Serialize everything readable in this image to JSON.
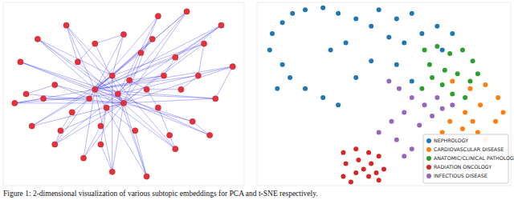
{
  "chart_data": [
    {
      "type": "network",
      "color": "#e8303a",
      "tick_labels": false,
      "xlim": [
        -1.05,
        1.05
      ],
      "ylim": [
        -1,
        1
      ],
      "x": [
        -0.25,
        0.0,
        -0.1,
        0.3,
        0.55,
        0.85,
        0.95,
        0.7,
        -0.9,
        -0.75,
        -0.5,
        -0.95,
        -0.8,
        -0.6,
        -0.35,
        -0.1,
        0.2,
        0.45,
        0.6,
        0.8,
        0.35,
        0.45,
        0.15,
        -0.4,
        -0.6,
        -0.45,
        -0.2,
        0.1,
        0.3,
        0.2,
        -0.3,
        -0.15,
        0.05,
        -0.05,
        0.5,
        -0.7,
        0.65,
        -0.25,
        0.0,
        0.4,
        -0.55,
        0.25,
        -0.85,
        0.75,
        -0.2
      ],
      "values": [
        0.05,
        -0.1,
        0.2,
        0.85,
        0.9,
        0.75,
        0.3,
        0.55,
        0.35,
        0.6,
        0.75,
        -0.1,
        -0.35,
        -0.55,
        -0.7,
        -0.85,
        -0.9,
        -0.6,
        -0.3,
        -0.05,
        0.2,
        0.4,
        0.45,
        0.35,
        0.1,
        -0.2,
        -0.35,
        -0.4,
        -0.15,
        0.05,
        -0.05,
        -0.15,
        0.15,
        0.0,
        0.05,
        -0.05,
        0.2,
        0.55,
        0.65,
        -0.45,
        -0.4,
        0.6,
        0.0,
        -0.45,
        -0.55
      ],
      "edges": [
        [
          0,
          3
        ],
        [
          0,
          4
        ],
        [
          0,
          5
        ],
        [
          0,
          6
        ],
        [
          0,
          7
        ],
        [
          0,
          8
        ],
        [
          0,
          9
        ],
        [
          0,
          10
        ],
        [
          0,
          11
        ],
        [
          0,
          12
        ],
        [
          0,
          13
        ],
        [
          0,
          14
        ],
        [
          0,
          15
        ],
        [
          0,
          16
        ],
        [
          0,
          17
        ],
        [
          0,
          18
        ],
        [
          0,
          19
        ],
        [
          0,
          20
        ],
        [
          0,
          21
        ],
        [
          0,
          22
        ],
        [
          0,
          36
        ],
        [
          0,
          43
        ],
        [
          0,
          41
        ],
        [
          0,
          38
        ],
        [
          1,
          3
        ],
        [
          1,
          4
        ],
        [
          1,
          5
        ],
        [
          1,
          6
        ],
        [
          1,
          7
        ],
        [
          1,
          8
        ],
        [
          1,
          9
        ],
        [
          1,
          10
        ],
        [
          1,
          11
        ],
        [
          1,
          12
        ],
        [
          1,
          13
        ],
        [
          1,
          14
        ],
        [
          1,
          15
        ],
        [
          1,
          16
        ],
        [
          1,
          17
        ],
        [
          1,
          18
        ],
        [
          1,
          19
        ],
        [
          1,
          23
        ],
        [
          1,
          24
        ],
        [
          1,
          35
        ],
        [
          1,
          42
        ],
        [
          1,
          40
        ],
        [
          1,
          37
        ],
        [
          33,
          3
        ],
        [
          33,
          5
        ],
        [
          33,
          6
        ],
        [
          33,
          8
        ],
        [
          33,
          11
        ],
        [
          33,
          13
        ],
        [
          33,
          16
        ],
        [
          33,
          19
        ],
        [
          33,
          43
        ],
        [
          33,
          9
        ],
        [
          33,
          4
        ],
        [
          2,
          4
        ],
        [
          2,
          7
        ],
        [
          2,
          9
        ],
        [
          2,
          10
        ],
        [
          2,
          12
        ],
        [
          2,
          15
        ],
        [
          2,
          17
        ],
        [
          2,
          38
        ],
        [
          2,
          41
        ],
        [
          30,
          25
        ],
        [
          30,
          24
        ],
        [
          30,
          35
        ],
        [
          31,
          26
        ],
        [
          31,
          27
        ],
        [
          31,
          44
        ],
        [
          32,
          29
        ],
        [
          32,
          20
        ],
        [
          32,
          22
        ],
        [
          29,
          34
        ],
        [
          29,
          28
        ],
        [
          28,
          39
        ],
        [
          34,
          36
        ],
        [
          36,
          7
        ],
        [
          20,
          21
        ],
        [
          22,
          41
        ],
        [
          23,
          37
        ],
        [
          23,
          10
        ],
        [
          24,
          42
        ],
        [
          25,
          40
        ],
        [
          26,
          14
        ],
        [
          27,
          16
        ],
        [
          39,
          17
        ],
        [
          18,
          43
        ],
        [
          19,
          6
        ],
        [
          35,
          11
        ],
        [
          40,
          13
        ],
        [
          44,
          15
        ],
        [
          37,
          38
        ],
        [
          21,
          5
        ],
        [
          0,
          30
        ],
        [
          1,
          31
        ],
        [
          33,
          32
        ],
        [
          0,
          2
        ],
        [
          1,
          33
        ]
      ]
    },
    {
      "type": "scatter",
      "tick_labels": false,
      "legend": "lower right",
      "xlim": [
        -50,
        50
      ],
      "ylim": [
        -50,
        50
      ],
      "series": [
        {
          "name": "NEPHROLOGY",
          "color": "#1f77b4",
          "x": [
            -45,
            -44,
            -40,
            -36,
            -31,
            -24,
            -18,
            -11,
            -5,
            -2,
            5,
            11,
            15,
            8,
            2,
            -40,
            -37,
            -31,
            -24,
            -18,
            -11,
            -5,
            5,
            11,
            21,
            27,
            23,
            -21,
            -15,
            -42
          ],
          "values": [
            24,
            33,
            39,
            44,
            46,
            47,
            44,
            41,
            37,
            46,
            41,
            44,
            33,
            28,
            31,
            16,
            9,
            3,
            -2,
            -6,
            9,
            18,
            16,
            7,
            37,
            33,
            24,
            24,
            28,
            3
          ]
        },
        {
          "name": "CARDIOVASCULAR DISEASE",
          "color": "#ff7f0e",
          "x": [
            27,
            34,
            40,
            45,
            38,
            32,
            26,
            31,
            37,
            44,
            47,
            23,
            27,
            40,
            35
          ],
          "values": [
            7,
            3,
            5,
            -2,
            -6,
            -10,
            -15,
            -19,
            -21,
            -15,
            -10,
            -21,
            -25,
            -25,
            -15
          ]
        },
        {
          "name": "ANATOMIC/CLINICAL PATHOLOGY",
          "color": "#2ca02c",
          "x": [
            16,
            21,
            26,
            31,
            35,
            18,
            24,
            29,
            34,
            23,
            27,
            32,
            19,
            37,
            15
          ],
          "values": [
            24,
            26,
            22,
            24,
            18,
            16,
            13,
            11,
            7,
            5,
            0,
            -2,
            9,
            11,
            3
          ]
        },
        {
          "name": "RADIATION ONCOLOGY",
          "color": "#d62728",
          "x": [
            -16,
            -11,
            -6,
            -2,
            -15,
            -10,
            -5,
            0,
            -16,
            -11,
            -6,
            -2,
            -13,
            -8,
            -3
          ],
          "values": [
            -32,
            -30,
            -32,
            -34,
            -38,
            -36,
            -38,
            -41,
            -45,
            -43,
            -45,
            -47,
            -48,
            -41,
            -43
          ]
        },
        {
          "name": "INFECTIOUS DISEASE",
          "color": "#9467bd",
          "x": [
            2,
            6,
            11,
            16,
            21,
            8,
            3,
            14,
            19,
            -2,
            5,
            11,
            23,
            27,
            8
          ],
          "values": [
            7,
            3,
            -2,
            -6,
            -2,
            -10,
            -15,
            -17,
            -12,
            -21,
            -25,
            -30,
            -8,
            -6,
            -34
          ]
        }
      ]
    }
  ],
  "caption": "Figure 1: 2-dimensional visualization of various subtopic embeddings for PCA and t-SNE respectively."
}
